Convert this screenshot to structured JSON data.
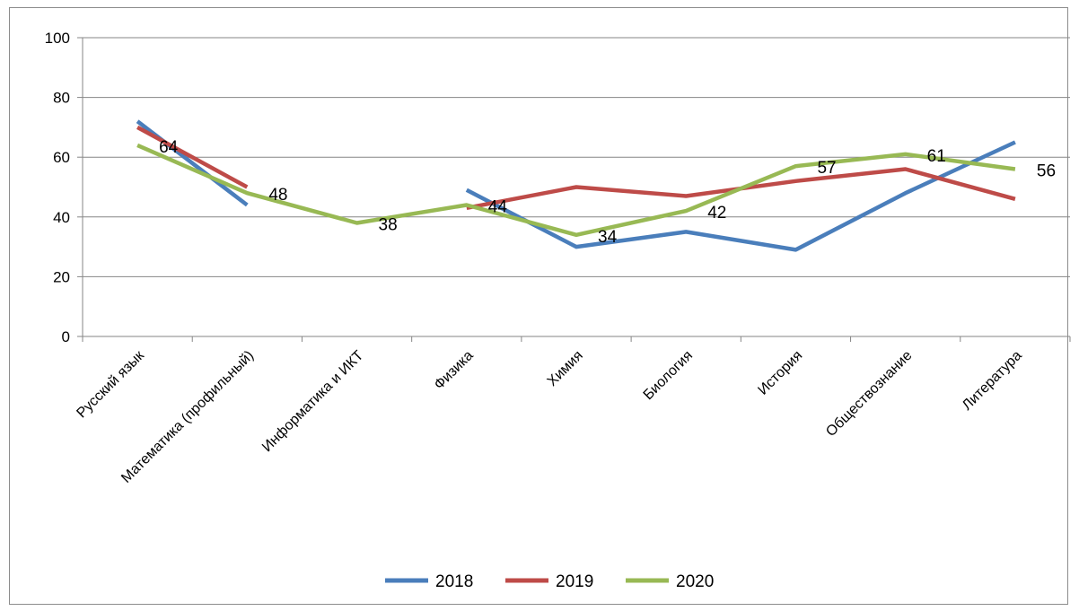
{
  "chart_data": {
    "type": "line",
    "categories": [
      "Русский язык",
      "Математика (профильный)",
      "Информатика и ИКТ",
      "Физика",
      "Химия",
      "Биология",
      "История",
      "Обществознание",
      "Литература"
    ],
    "ylim": [
      0,
      100
    ],
    "yticks": [
      0,
      20,
      40,
      60,
      80,
      100
    ],
    "grid": true,
    "legend_position": "bottom",
    "series": [
      {
        "name": "2018",
        "color": "#4a7ebb",
        "values": [
          72,
          44,
          null,
          49,
          30,
          35,
          29,
          48,
          65
        ]
      },
      {
        "name": "2019",
        "color": "#be4b48",
        "values": [
          70,
          50,
          null,
          43,
          50,
          47,
          52,
          56,
          46
        ]
      },
      {
        "name": "2020",
        "color": "#98b954",
        "values": [
          64,
          48,
          38,
          44,
          34,
          42,
          57,
          61,
          56
        ]
      }
    ],
    "data_labels": [
      "64",
      "48",
      "38",
      "44",
      "34",
      "42",
      "57",
      "61",
      "56"
    ]
  }
}
